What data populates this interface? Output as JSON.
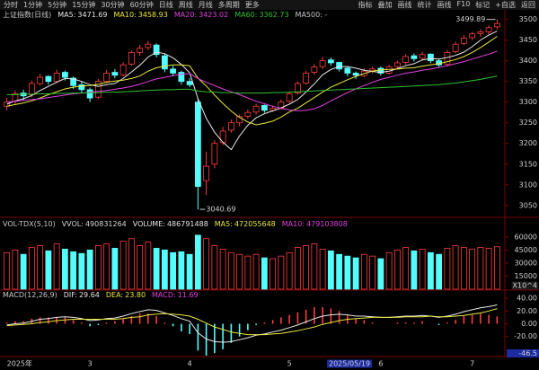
{
  "toolbar": {
    "left": [
      "分时",
      "1分钟",
      "5分钟",
      "15分钟",
      "30分钟",
      "60分钟",
      "日线",
      "周线",
      "月线",
      "多周期",
      "更多"
    ],
    "right": [
      "指标",
      "叠加",
      "画线",
      "统计",
      "画线",
      "F10",
      "标记",
      "+自选",
      "返回"
    ]
  },
  "chart_data": [
    {
      "type": "candlestick",
      "title": "上证指数(日线)",
      "categories": [
        "2025年",
        null,
        null,
        null,
        null,
        null,
        null,
        null,
        null,
        null,
        "3",
        null,
        null,
        null,
        null,
        null,
        null,
        null,
        null,
        null,
        null,
        null,
        "4",
        null,
        null,
        null,
        null,
        null,
        null,
        null,
        null,
        null,
        null,
        null,
        "5",
        null,
        null,
        null,
        null,
        null,
        null,
        null,
        null,
        null,
        null,
        "6",
        null,
        null,
        null,
        null,
        null,
        null,
        null,
        null,
        null,
        null,
        "7",
        null,
        null,
        null
      ],
      "cursor_label": "2025/05/19",
      "candles": {
        "up_color": "#ff3c3c",
        "down_color": "#54fcfc",
        "open": [
          3290,
          3302,
          3322,
          3318,
          3345,
          3362,
          3350,
          3372,
          3358,
          3342,
          3330,
          3312,
          3350,
          3372,
          3366,
          3392,
          3420,
          3432,
          3438,
          3412,
          3380,
          3372,
          3350,
          3300,
          3110,
          3150,
          3202,
          3232,
          3250,
          3266,
          3276,
          3292,
          3280,
          3286,
          3302,
          3322,
          3346,
          3372,
          3386,
          3402,
          3396,
          3382,
          3370,
          3364,
          3376,
          3382,
          3370,
          3386,
          3396,
          3412,
          3406,
          3416,
          3400,
          3392,
          3422,
          3442,
          3456,
          3466,
          3470,
          3482
        ],
        "high": [
          3310,
          3328,
          3330,
          3352,
          3368,
          3365,
          3378,
          3376,
          3362,
          3350,
          3335,
          3356,
          3378,
          3380,
          3396,
          3425,
          3438,
          3448,
          3442,
          3418,
          3388,
          3376,
          3358,
          3310,
          3180,
          3208,
          3240,
          3258,
          3270,
          3282,
          3296,
          3294,
          3292,
          3306,
          3326,
          3350,
          3376,
          3392,
          3410,
          3408,
          3398,
          3386,
          3374,
          3382,
          3386,
          3386,
          3390,
          3400,
          3416,
          3418,
          3422,
          3418,
          3404,
          3426,
          3446,
          3462,
          3470,
          3476,
          3486,
          3499.89
        ],
        "low": [
          3280,
          3295,
          3305,
          3312,
          3340,
          3342,
          3346,
          3352,
          3332,
          3322,
          3300,
          3308,
          3346,
          3358,
          3362,
          3388,
          3412,
          3426,
          3408,
          3372,
          3362,
          3342,
          3336,
          3040.69,
          3075,
          3140,
          3196,
          3226,
          3242,
          3260,
          3270,
          3274,
          3276,
          3282,
          3298,
          3318,
          3342,
          3366,
          3380,
          3388,
          3374,
          3362,
          3356,
          3360,
          3370,
          3364,
          3366,
          3380,
          3390,
          3398,
          3400,
          3394,
          3384,
          3388,
          3418,
          3438,
          3450,
          3458,
          3464,
          3476
        ],
        "close": [
          3300,
          3320,
          3315,
          3345,
          3360,
          3350,
          3370,
          3360,
          3340,
          3330,
          3310,
          3350,
          3370,
          3365,
          3390,
          3420,
          3430,
          3440,
          3415,
          3380,
          3370,
          3350,
          3342,
          3096,
          3145,
          3200,
          3230,
          3250,
          3265,
          3275,
          3290,
          3280,
          3285,
          3300,
          3320,
          3345,
          3370,
          3385,
          3400,
          3395,
          3380,
          3370,
          3365,
          3375,
          3380,
          3370,
          3385,
          3395,
          3410,
          3405,
          3415,
          3400,
          3390,
          3420,
          3440,
          3455,
          3465,
          3470,
          3480,
          3490
        ]
      },
      "series": [
        {
          "name": "MA5:",
          "color": "#e8e8e8",
          "values": [
            3295,
            3303,
            3308,
            3316,
            3328,
            3338,
            3348,
            3357,
            3356,
            3350,
            3342,
            3338,
            3342,
            3345,
            3357,
            3373,
            3389,
            3409,
            3421,
            3417,
            3407,
            3391,
            3371,
            3308,
            3261,
            3227,
            3203,
            3185,
            3218,
            3244,
            3262,
            3272,
            3279,
            3286,
            3295,
            3306,
            3324,
            3344,
            3366,
            3379,
            3386,
            3386,
            3382,
            3377,
            3374,
            3372,
            3375,
            3381,
            3388,
            3393,
            3402,
            3405,
            3404,
            3408,
            3413,
            3421,
            3434,
            3450,
            3462,
            3471.69
          ]
        },
        {
          "name": "MA10:",
          "color": "#e8e83c",
          "values": [
            3290,
            3294,
            3298,
            3303,
            3310,
            3318,
            3325,
            3332,
            3336,
            3339,
            3340,
            3343,
            3348,
            3351,
            3353,
            3357,
            3363,
            3375,
            3383,
            3387,
            3390,
            3390,
            3388,
            3358,
            3339,
            3317,
            3297,
            3278,
            3263,
            3252,
            3245,
            3249,
            3254,
            3264,
            3276,
            3285,
            3298,
            3311,
            3324,
            3336,
            3345,
            3354,
            3362,
            3369,
            3375,
            3378,
            3379,
            3380,
            3382,
            3383,
            3387,
            3390,
            3393,
            3398,
            3403,
            3410,
            3420,
            3432,
            3445,
            3458.93
          ]
        },
        {
          "name": "MA20:",
          "color": "#e040e0",
          "values": [
            3300,
            3302,
            3304,
            3306,
            3308,
            3311,
            3314,
            3317,
            3320,
            3322,
            3324,
            3326,
            3328,
            3331,
            3334,
            3338,
            3343,
            3350,
            3356,
            3360,
            3364,
            3367,
            3369,
            3357,
            3348,
            3340,
            3332,
            3325,
            3318,
            3310,
            3302,
            3296,
            3290,
            3285,
            3281,
            3279,
            3280,
            3284,
            3292,
            3303,
            3313,
            3323,
            3332,
            3340,
            3348,
            3355,
            3360,
            3365,
            3370,
            3373,
            3377,
            3380,
            3384,
            3388,
            3393,
            3398,
            3404,
            3410,
            3416,
            3423.02
          ]
        },
        {
          "name": "MA60:",
          "color": "#30c030",
          "values": [
            3318,
            3318,
            3319,
            3319,
            3320,
            3320,
            3321,
            3321,
            3322,
            3322,
            3323,
            3323,
            3324,
            3324,
            3325,
            3326,
            3327,
            3328,
            3329,
            3330,
            3330,
            3331,
            3331,
            3327,
            3325,
            3324,
            3323,
            3323,
            3322,
            3322,
            3322,
            3322,
            3323,
            3323,
            3324,
            3325,
            3326,
            3327,
            3328,
            3329,
            3330,
            3331,
            3332,
            3333,
            3334,
            3335,
            3336,
            3337,
            3338,
            3339,
            3340,
            3341,
            3342,
            3344,
            3346,
            3349,
            3352,
            3355,
            3359,
            3362.73
          ]
        }
      ],
      "ma500_label": "MA500: -",
      "ylim": [
        3030,
        3510
      ],
      "yticks": [
        3050,
        3100,
        3150,
        3200,
        3250,
        3300,
        3350,
        3400,
        3450,
        3500
      ]
    },
    {
      "type": "volume",
      "title": "VOL-TDX(5,10)",
      "readouts": [
        {
          "name": "VVOL:",
          "value": 490831264,
          "color": "#d8d8d8"
        },
        {
          "name": "VOLUME:",
          "value": 486791488,
          "color": "#e8e8e8"
        },
        {
          "name": "MA5:",
          "value": 472055648,
          "color": "#e8e83c"
        },
        {
          "name": "MA10:",
          "value": 479103808,
          "color": "#e040e0"
        }
      ],
      "values": [
        42000,
        45000,
        40000,
        48000,
        50000,
        44000,
        52000,
        46000,
        43000,
        41000,
        45000,
        50000,
        52000,
        47000,
        55000,
        58000,
        50000,
        54000,
        47000,
        45000,
        42000,
        43000,
        40000,
        62000,
        58000,
        50000,
        46000,
        42000,
        40000,
        38000,
        40000,
        36000,
        35000,
        38000,
        42000,
        48000,
        50000,
        52000,
        46000,
        44000,
        40000,
        38000,
        36000,
        40000,
        38000,
        35000,
        42000,
        45000,
        48000,
        44000,
        46000,
        42000,
        40000,
        47000,
        50000,
        48000,
        46000,
        48000,
        47000,
        48679
      ],
      "ylim": [
        0,
        66000
      ],
      "yticks": [
        15000,
        30000,
        45000,
        60000
      ],
      "unit_label": "X10^4"
    },
    {
      "type": "macd",
      "title": "MACD(12,26,9)",
      "readouts": [
        {
          "name": "DIF:",
          "value": 29.64,
          "color": "#e8e8e8"
        },
        {
          "name": "DEA:",
          "value": 23.8,
          "label": "23.80",
          "color": "#e8e83c"
        },
        {
          "name": "MACD:",
          "value": 11.69,
          "color": "#e040e0"
        }
      ],
      "series": [
        {
          "color": "#e8e8e8",
          "values": [
            -2,
            0,
            1,
            4,
            7,
            8,
            10,
            11,
            10,
            8,
            5,
            6,
            8,
            9,
            12,
            16,
            19,
            22,
            21,
            17,
            13,
            8,
            4,
            -14,
            -24,
            -28,
            -29,
            -28,
            -25,
            -22,
            -18,
            -16,
            -13,
            -10,
            -6,
            -2,
            3,
            8,
            12,
            14,
            15,
            14,
            12,
            12,
            11,
            10,
            10,
            11,
            12,
            12,
            13,
            12,
            10,
            12,
            15,
            19,
            22,
            25,
            27,
            29.64
          ]
        },
        {
          "color": "#e8e83c",
          "values": [
            -3,
            -2,
            -1,
            0,
            2,
            3,
            5,
            6,
            7,
            7,
            7,
            7,
            7,
            7,
            8,
            10,
            11,
            14,
            15,
            16,
            15,
            14,
            12,
            7,
            1,
            -5,
            -9,
            -13,
            -15,
            -17,
            -17,
            -17,
            -16,
            -15,
            -13,
            -11,
            -8,
            -5,
            -1,
            2,
            5,
            7,
            8,
            9,
            10,
            10,
            10,
            10,
            11,
            11,
            11,
            12,
            11,
            11,
            12,
            13,
            15,
            17,
            20,
            23.8
          ]
        }
      ],
      "histogram": {
        "up_color": "#ff3c3c",
        "down_color": "#54fcfc",
        "values": [
          2,
          4,
          4,
          8,
          10,
          10,
          10,
          10,
          6,
          2,
          -4,
          -2,
          2,
          4,
          8,
          12,
          16,
          16,
          12,
          2,
          -4,
          -12,
          -16,
          -42,
          -50,
          -46,
          -40,
          -30,
          -20,
          -10,
          -2,
          2,
          6,
          10,
          14,
          18,
          22,
          26,
          26,
          24,
          20,
          14,
          8,
          6,
          2,
          0,
          0,
          2,
          2,
          2,
          4,
          0,
          -2,
          2,
          6,
          12,
          14,
          16,
          14,
          11.69
        ]
      },
      "ylim": [
        -50,
        43
      ],
      "yticks": [
        {
          "value": -20,
          "label": "-20.00"
        },
        {
          "value": 0,
          "label": "0.00"
        },
        {
          "value": 20,
          "label": "20.00"
        },
        {
          "value": 40,
          "label": "40.00"
        }
      ],
      "cursor_value": -46.5
    }
  ]
}
